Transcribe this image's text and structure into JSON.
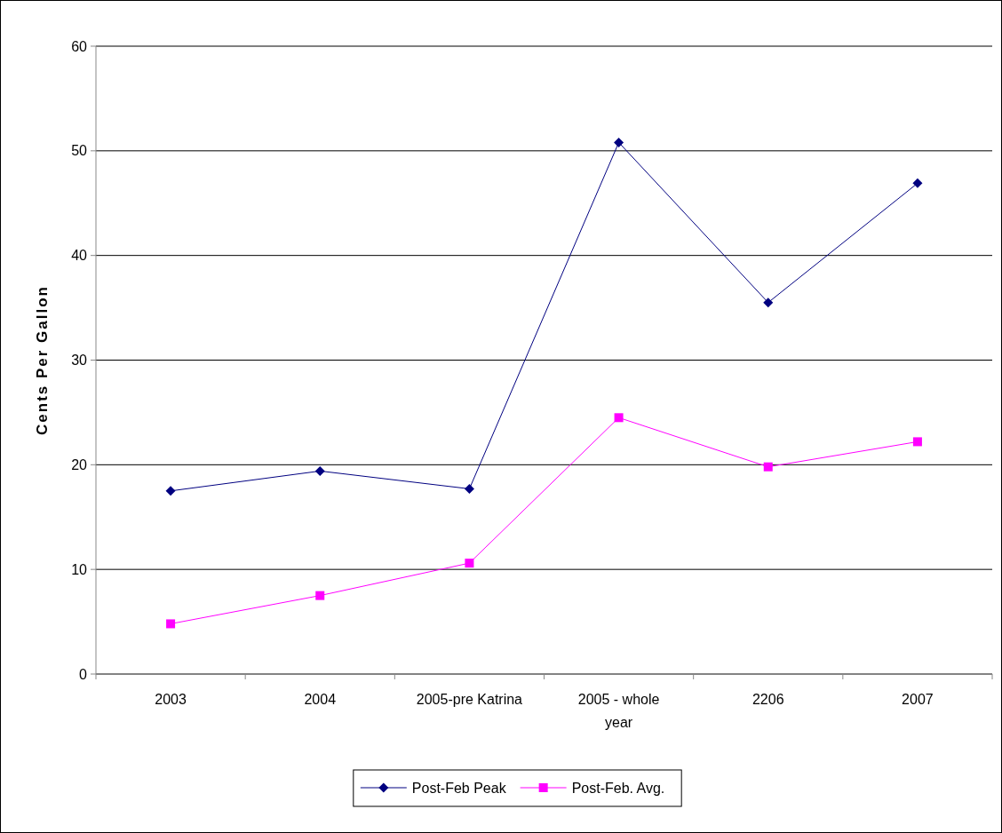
{
  "chart_data": {
    "type": "line",
    "ylabel": "Cents Per Gallon",
    "categories": [
      "2003",
      "2004",
      "2005-pre Katrina",
      "2005 - whole year",
      "2206",
      "2007"
    ],
    "series": [
      {
        "name": "Post-Feb Peak",
        "color": "#000080",
        "marker": "diamond",
        "values": [
          17.5,
          19.4,
          17.7,
          50.8,
          35.5,
          46.9
        ]
      },
      {
        "name": "Post-Feb. Avg.",
        "color": "#ff00ff",
        "marker": "square",
        "values": [
          4.8,
          7.5,
          10.6,
          24.5,
          19.8,
          22.2
        ]
      }
    ],
    "ylim": [
      0,
      60
    ],
    "yticks": [
      0,
      10,
      20,
      30,
      40,
      50,
      60
    ],
    "grid": "y",
    "legend": "bottom"
  }
}
